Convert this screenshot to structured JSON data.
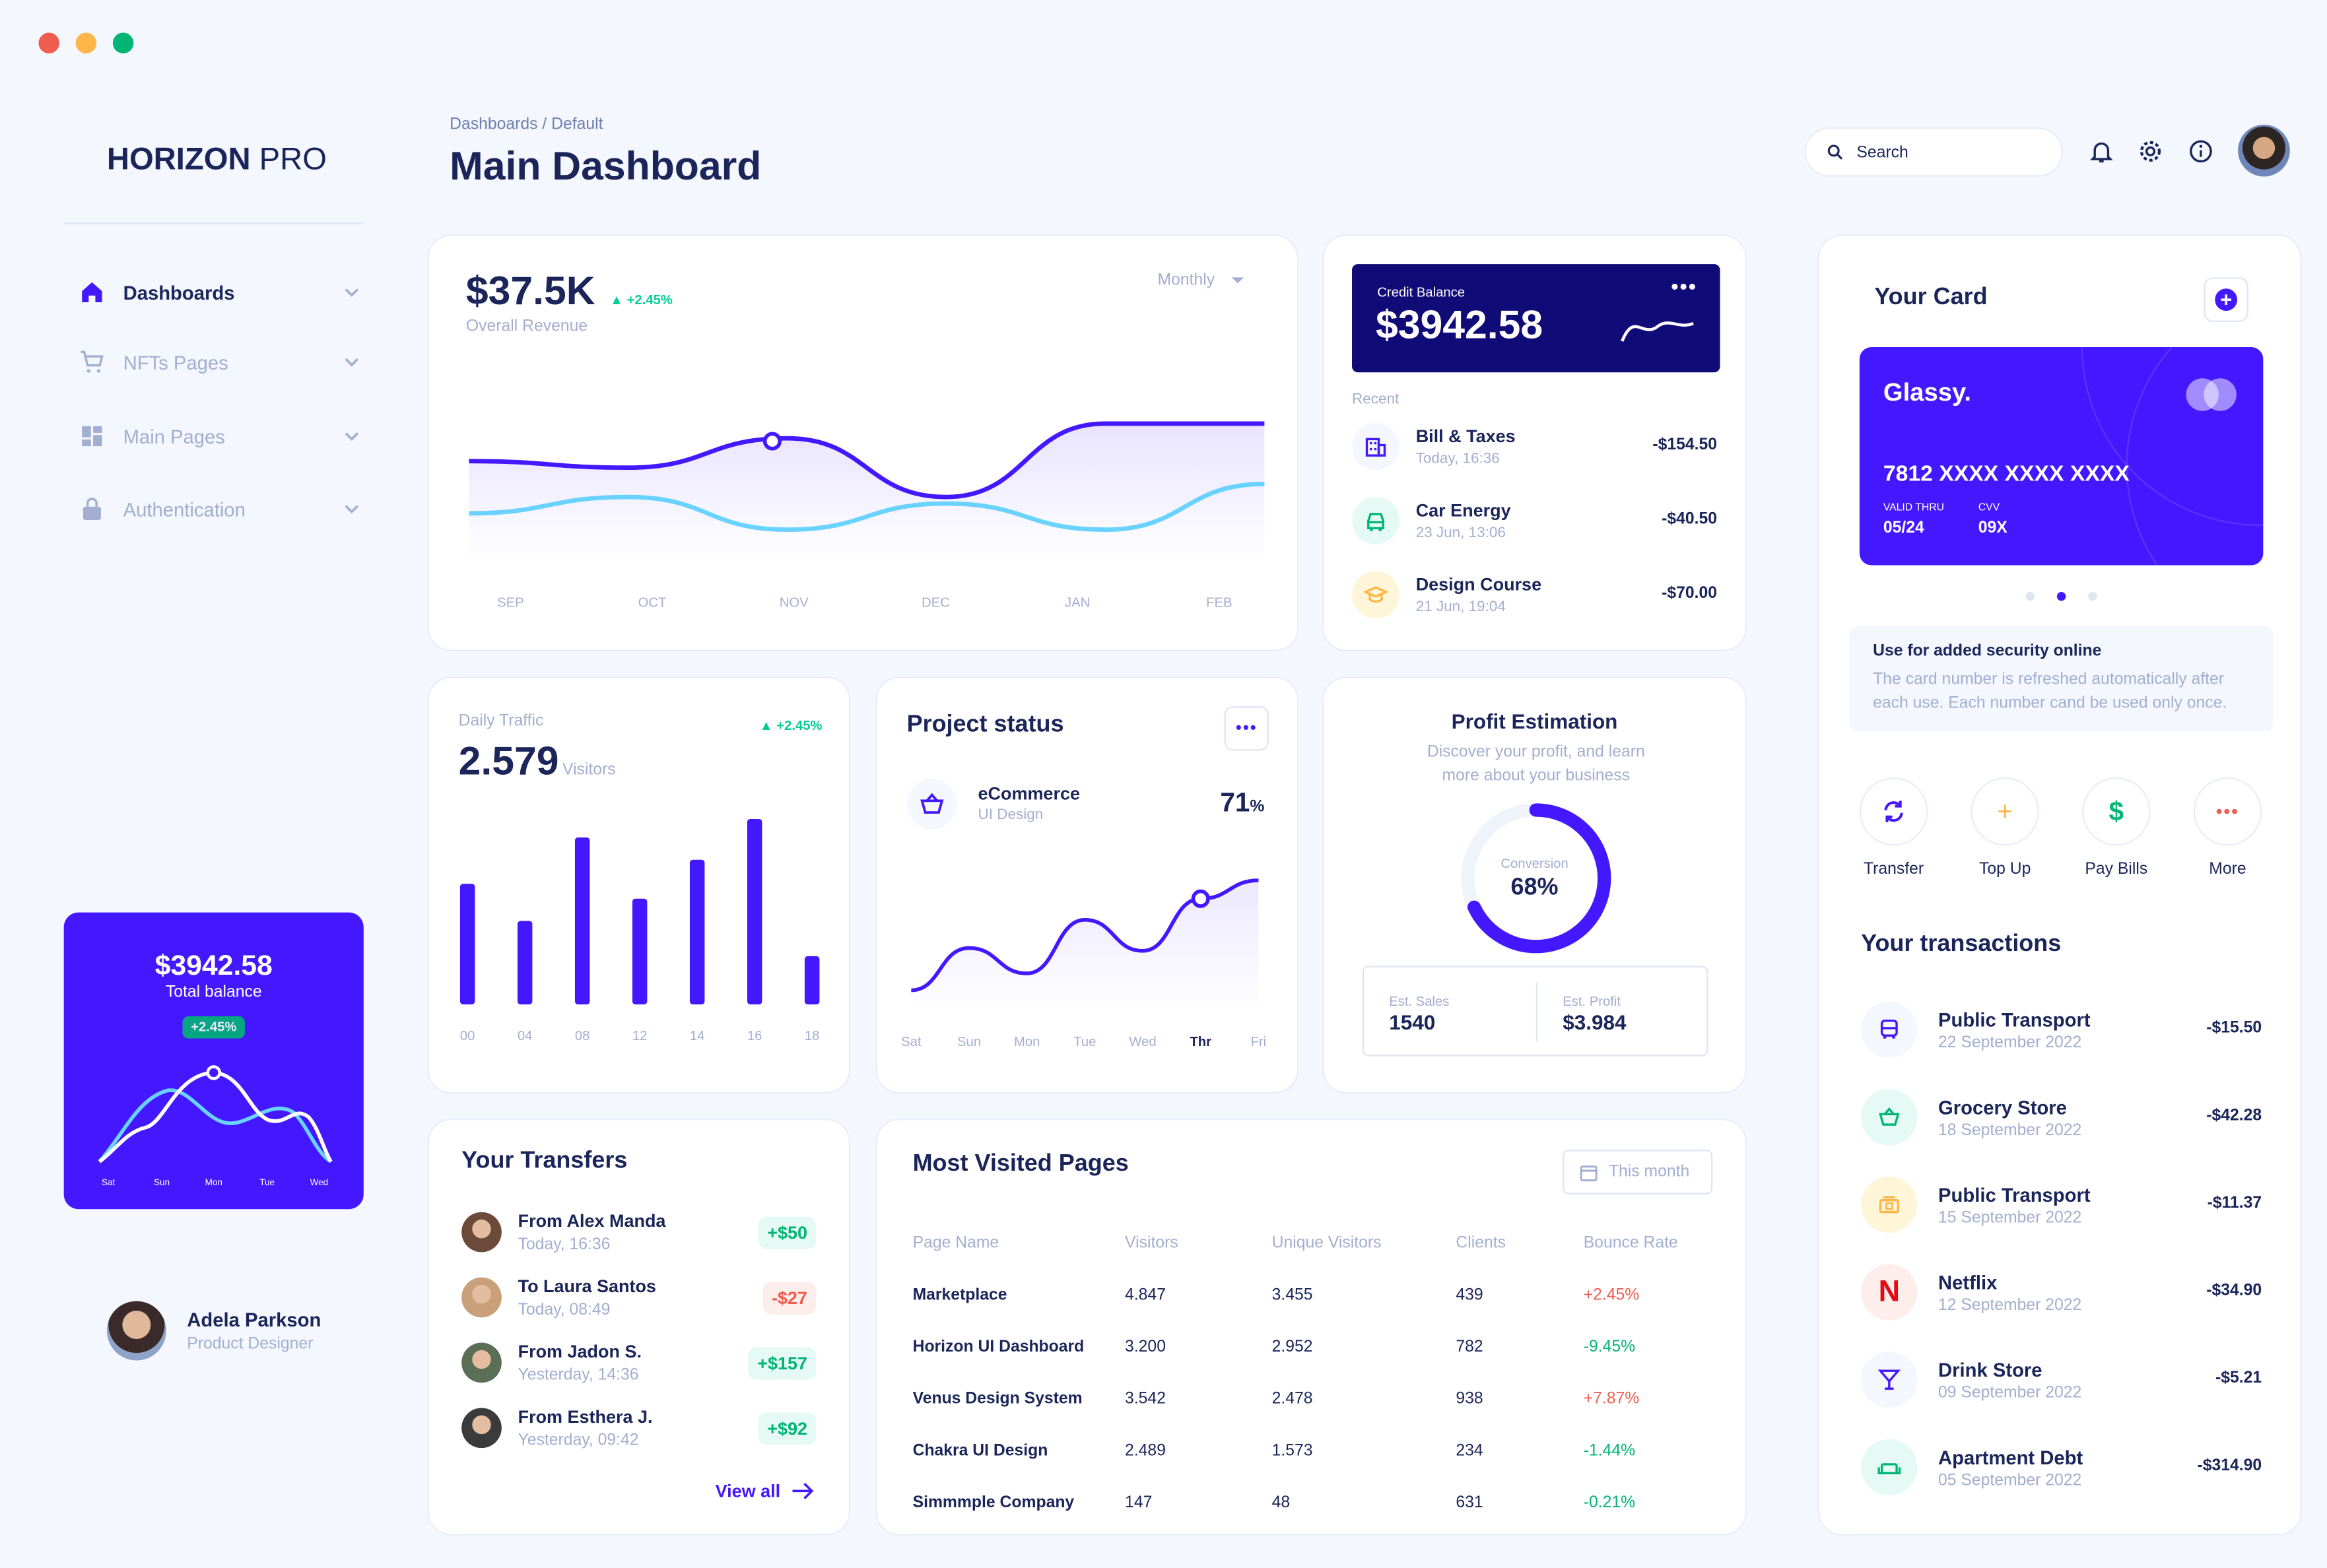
{
  "brand": {
    "name_bold": "HORIZON",
    "name_light": "PRO"
  },
  "sidebar": {
    "items": [
      {
        "label": "Dashboards",
        "icon": "home-icon"
      },
      {
        "label": "NFTs Pages",
        "icon": "cart-icon"
      },
      {
        "label": "Main Pages",
        "icon": "grid-icon"
      },
      {
        "label": "Authentication",
        "icon": "lock-icon"
      }
    ],
    "balance_card": {
      "amount": "$3942.58",
      "label": "Total balance",
      "change": "+2.45%",
      "days": [
        "Sat",
        "Sun",
        "Mon",
        "Tue",
        "Wed"
      ]
    },
    "user": {
      "name": "Adela Parkson",
      "role": "Product Designer"
    }
  },
  "header": {
    "breadcrumb": "Dashboards / Default",
    "title": "Main Dashboard",
    "search_placeholder": "Search"
  },
  "revenue": {
    "amount": "$37.5K",
    "change": "+2.45%",
    "label": "Overall Revenue",
    "period": "Monthly",
    "chart_data": {
      "type": "line",
      "categories": [
        "SEP",
        "OCT",
        "NOV",
        "DEC",
        "JAN",
        "FEB"
      ],
      "series": [
        {
          "values": [
            62,
            58,
            76,
            40,
            85,
            85
          ],
          "color": "#4318ff"
        },
        {
          "values": [
            30,
            40,
            20,
            36,
            20,
            48
          ],
          "color": "#6ad2ff"
        }
      ],
      "ylim": [
        0,
        100
      ]
    }
  },
  "credit": {
    "label": "Credit Balance",
    "amount": "$3942.58",
    "recent_label": "Recent",
    "items": [
      {
        "title": "Bill & Taxes",
        "time": "Today, 16:36",
        "amount": "-$154.50",
        "icon": "building-icon"
      },
      {
        "title": "Car Energy",
        "time": "23 Jun, 13:06",
        "amount": "-$40.50",
        "icon": "car-icon"
      },
      {
        "title": "Design Course",
        "time": "21 Jun, 19:04",
        "amount": "-$70.00",
        "icon": "graduation-cap-icon"
      }
    ]
  },
  "traffic": {
    "label": "Daily Traffic",
    "change": "+2.45%",
    "value": "2.579",
    "unit": "Visitors",
    "chart_data": {
      "type": "bar",
      "categories": [
        "00",
        "04",
        "08",
        "12",
        "14",
        "16",
        "18"
      ],
      "values": [
        65,
        45,
        90,
        57,
        78,
        100,
        26
      ],
      "ylim": [
        0,
        100
      ]
    }
  },
  "project": {
    "title": "Project status",
    "item_title": "eCommerce",
    "item_sub": "UI Design",
    "percent": "71",
    "percent_unit": "%",
    "chart_data": {
      "type": "line",
      "categories": [
        "Sat",
        "Sun",
        "Mon",
        "Tue",
        "Wed",
        "Thr",
        "Fri"
      ],
      "values": [
        10,
        40,
        22,
        60,
        38,
        75,
        88
      ],
      "ylim": [
        0,
        100
      ]
    }
  },
  "profit": {
    "title": "Profit Estimation",
    "desc": "Discover your profit, and learn more about your business",
    "conversion_label": "Conversion",
    "conversion_value": "68%",
    "conversion_fraction": 0.68,
    "est_sales_label": "Est. Sales",
    "est_sales": "1540",
    "est_profit_label": "Est. Profit",
    "est_profit": "$3.984"
  },
  "transfers": {
    "title": "Your Transfers",
    "view_all": "View all",
    "items": [
      {
        "title": "From Alex Manda",
        "time": "Today, 16:36",
        "amount": "+$50",
        "positive": true
      },
      {
        "title": "To Laura Santos",
        "time": "Today, 08:49",
        "amount": "-$27",
        "positive": false
      },
      {
        "title": "From Jadon S.",
        "time": "Yesterday, 14:36",
        "amount": "+$157",
        "positive": true
      },
      {
        "title": "From Esthera J.",
        "time": "Yesterday, 09:42",
        "amount": "+$92",
        "positive": true
      }
    ]
  },
  "pages": {
    "title": "Most Visited Pages",
    "filter": "This month",
    "headers": [
      "Page Name",
      "Visitors",
      "Unique Visitors",
      "Clients",
      "Bounce Rate"
    ],
    "rows": [
      {
        "name": "Marketplace",
        "visitors": "4.847",
        "unique": "3.455",
        "clients": "439",
        "bounce": "+2.45%",
        "up": true
      },
      {
        "name": "Horizon UI Dashboard",
        "visitors": "3.200",
        "unique": "2.952",
        "clients": "782",
        "bounce": "-9.45%",
        "up": false
      },
      {
        "name": "Venus Design System",
        "visitors": "3.542",
        "unique": "2.478",
        "clients": "938",
        "bounce": "+7.87%",
        "up": true
      },
      {
        "name": "Chakra UI Design",
        "visitors": "2.489",
        "unique": "1.573",
        "clients": "234",
        "bounce": "-1.44%",
        "up": false
      },
      {
        "name": "Simmmple Company",
        "visitors": "147",
        "unique": "48",
        "clients": "631",
        "bounce": "-0.21%",
        "up": false
      }
    ]
  },
  "your_card": {
    "title": "Your Card",
    "brand": "Glassy.",
    "number": "7812 XXXX XXXX XXXX",
    "valid_label": "VALID THRU",
    "valid": "05/24",
    "cvv_label": "CVV",
    "cvv": "09X",
    "security_title": "Use for added security online",
    "security_text": "The card number is refreshed automatically after each use. Each number cand be used only once.",
    "actions": [
      "Transfer",
      "Top Up",
      "Pay Bills",
      "More"
    ]
  },
  "transactions": {
    "title": "Your transactions",
    "items": [
      {
        "title": "Public Transport",
        "date": "22 September 2022",
        "amount": "-$15.50",
        "icon": "bus-icon"
      },
      {
        "title": "Grocery Store",
        "date": "18 September 2022",
        "amount": "-$42.28",
        "icon": "basket-icon"
      },
      {
        "title": "Public Transport",
        "date": "15 September 2022",
        "amount": "-$11.37",
        "icon": "ticket-icon"
      },
      {
        "title": "Netflix",
        "date": "12 September 2022",
        "amount": "-$34.90",
        "icon": "netflix-icon",
        "icon_text": "N"
      },
      {
        "title": "Drink Store",
        "date": "09 September 2022",
        "amount": "-$5.21",
        "icon": "cocktail-icon"
      },
      {
        "title": "Apartment Debt",
        "date": "05 September 2022",
        "amount": "-$314.90",
        "icon": "sofa-icon"
      }
    ]
  }
}
